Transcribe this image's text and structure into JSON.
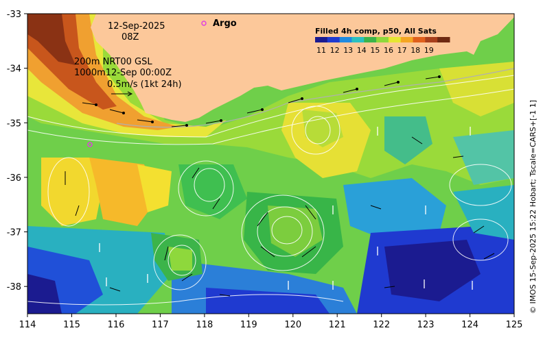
{
  "map": {
    "lon_range": [
      114,
      125
    ],
    "lat_range": [
      -38.5,
      -33
    ],
    "x_ticks": [
      "114",
      "115",
      "116",
      "117",
      "118",
      "119",
      "120",
      "121",
      "122",
      "123",
      "124",
      "125"
    ],
    "y_ticks": [
      "-33",
      "-34",
      "-35",
      "-36",
      "-37",
      "-38"
    ],
    "land_color": "#fcc89a"
  },
  "annotations": {
    "date": "12-Sep-2025",
    "hour": "08Z",
    "contour_line1": "200m  NRT00 GSL",
    "contour_line2": "1000m12-Sep 00:00Z",
    "scale_text": "0.5m/s (1kt 24h)"
  },
  "argo": {
    "label": "Argo",
    "marker_color": "#e040e0"
  },
  "legend": {
    "title": "Filled 4h comp, p50, All Sats",
    "ticks": [
      "11",
      "12",
      "13",
      "14",
      "15",
      "16",
      "17",
      "18",
      "19"
    ],
    "colors": [
      "#1b1b90",
      "#1f3ad0",
      "#1f8be0",
      "#2bc0c0",
      "#3cb44a",
      "#8ed83c",
      "#e6e632",
      "#f5a623",
      "#e0601c",
      "#a8401c",
      "#6e2a12"
    ]
  },
  "credit": "© IMOS 15-Sep-2025 15:22 Hobart; Tscale=CARS+[-1 1]"
}
